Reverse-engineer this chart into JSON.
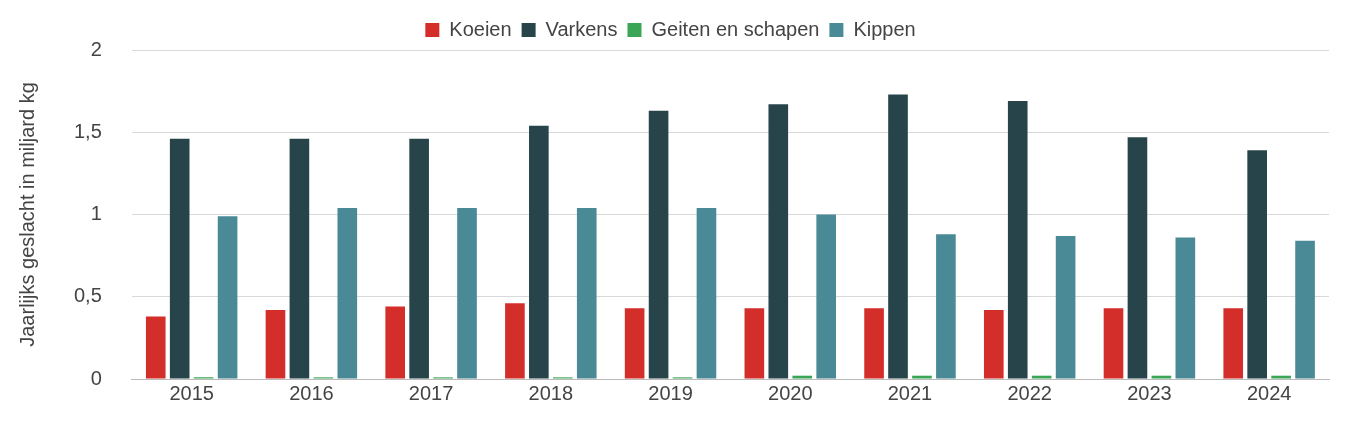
{
  "chart_data": {
    "type": "bar",
    "ylabel": "Jaarlijks geslacht in miljard kg",
    "categories": [
      "2015",
      "2016",
      "2017",
      "2018",
      "2019",
      "2020",
      "2021",
      "2022",
      "2023",
      "2024"
    ],
    "series": [
      {
        "name": "Koeien",
        "color": "#d42e2b",
        "values": [
          0.38,
          0.42,
          0.44,
          0.46,
          0.43,
          0.43,
          0.43,
          0.42,
          0.43,
          0.43
        ]
      },
      {
        "name": "Varkens",
        "color": "#26444a",
        "values": [
          1.46,
          1.46,
          1.46,
          1.54,
          1.63,
          1.67,
          1.73,
          1.69,
          1.47,
          1.39
        ]
      },
      {
        "name": "Geiten en schapen",
        "color": "#3aa655",
        "values": [
          0.01,
          0.01,
          0.01,
          0.01,
          0.01,
          0.02,
          0.02,
          0.02,
          0.02,
          0.02
        ]
      },
      {
        "name": "Kippen",
        "color": "#4a8a96",
        "values": [
          0.99,
          1.04,
          1.04,
          1.04,
          1.04,
          1.0,
          0.88,
          0.87,
          0.86,
          0.84
        ]
      }
    ],
    "ylim": [
      0,
      2
    ],
    "yticks": [
      0,
      {
        "value": 0.5,
        "label": "0,5"
      },
      1,
      {
        "value": 1.5,
        "label": "1,5"
      },
      2
    ],
    "grid": "y",
    "legend": "top"
  }
}
